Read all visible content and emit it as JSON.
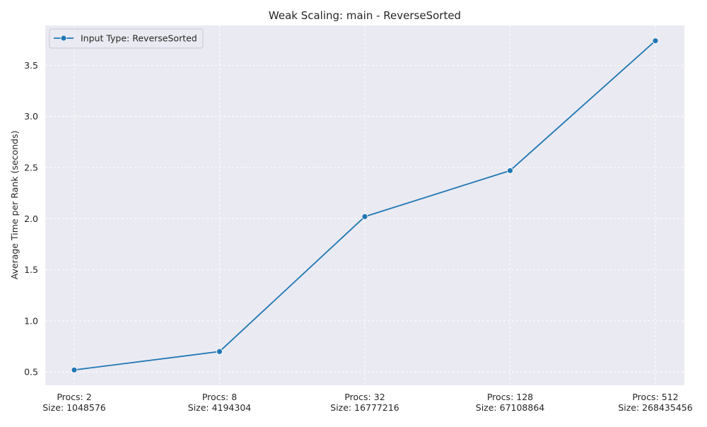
{
  "chart_data": {
    "type": "line",
    "title": "Weak Scaling: main - ReverseSorted",
    "xlabel": "",
    "ylabel": "Average Time per Rank (seconds)",
    "categories": [
      [
        "Procs: 2",
        "Size: 1048576"
      ],
      [
        "Procs: 8",
        "Size: 4194304"
      ],
      [
        "Procs: 32",
        "Size: 16777216"
      ],
      [
        "Procs: 128",
        "Size: 67108864"
      ],
      [
        "Procs: 512",
        "Size: 268435456"
      ]
    ],
    "series": [
      {
        "name": "Input Type: ReverseSorted",
        "color": "#1f77b4",
        "marker": "circle",
        "values": [
          0.52,
          0.7,
          2.02,
          2.47,
          3.74
        ]
      }
    ],
    "ylim": [
      0.37,
      3.89
    ],
    "yticks": [
      0.5,
      1.0,
      1.5,
      2.0,
      2.5,
      3.0,
      3.5
    ],
    "grid": true,
    "legend_position": "top-left",
    "colors": {
      "plot_background": "#eaeaf2",
      "grid": "#ffffff"
    }
  }
}
